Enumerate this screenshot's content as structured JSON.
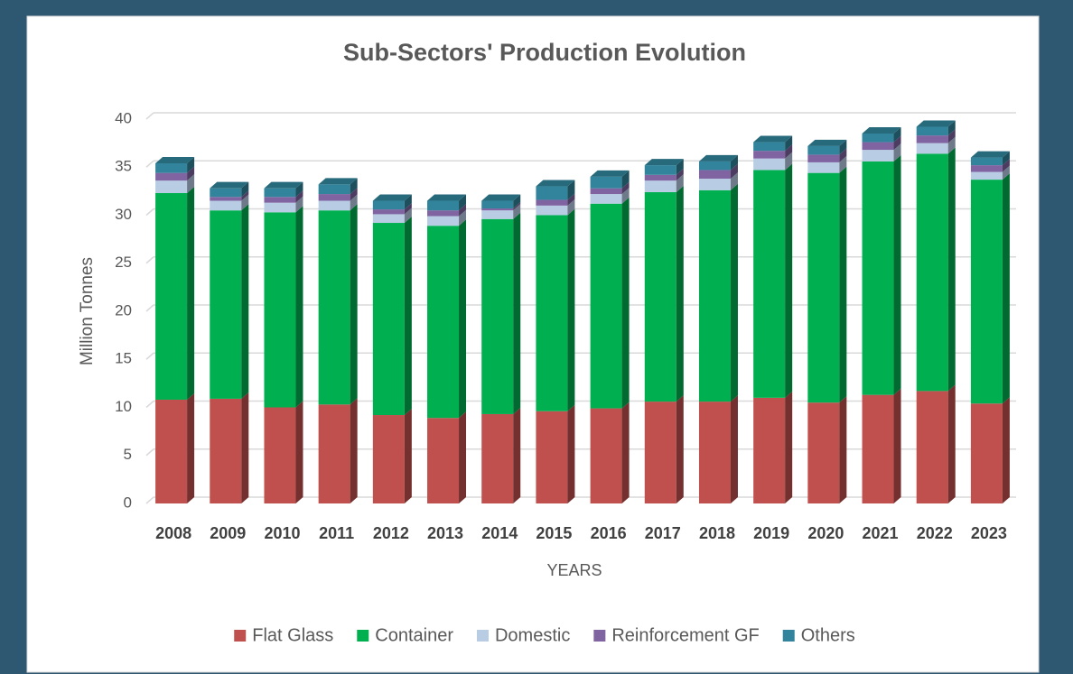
{
  "chart_data": {
    "type": "bar",
    "stacked": true,
    "title": "Sub-Sectors' Production Evolution",
    "x_label": "YEARS",
    "y_label": "Million Tonnes",
    "categories": [
      "2008",
      "2009",
      "2010",
      "2011",
      "2012",
      "2013",
      "2014",
      "2015",
      "2016",
      "2017",
      "2018",
      "2019",
      "2020",
      "2021",
      "2022",
      "2023"
    ],
    "series": [
      {
        "name": "Flat Glass",
        "color": "#c0504d",
        "values": [
          10.8,
          10.9,
          10.0,
          10.3,
          9.2,
          8.9,
          9.3,
          9.6,
          9.9,
          10.6,
          10.6,
          11.0,
          10.5,
          11.3,
          11.7,
          10.4
        ]
      },
      {
        "name": "Container",
        "color": "#00b050",
        "values": [
          21.5,
          19.6,
          20.3,
          20.2,
          20.0,
          20.0,
          20.3,
          20.4,
          21.3,
          21.8,
          22.0,
          23.7,
          23.9,
          24.3,
          24.7,
          23.3
        ]
      },
      {
        "name": "Domestic",
        "color": "#b8cce4",
        "values": [
          1.3,
          1.0,
          1.0,
          1.0,
          0.9,
          1.0,
          0.9,
          1.0,
          1.0,
          1.2,
          1.2,
          1.2,
          1.1,
          1.2,
          1.1,
          0.8
        ]
      },
      {
        "name": "Reinforcement GF",
        "color": "#8064a2",
        "values": [
          0.8,
          0.4,
          0.6,
          0.7,
          0.5,
          0.6,
          0.2,
          0.6,
          0.6,
          0.6,
          0.9,
          0.8,
          0.8,
          0.8,
          0.8,
          0.7
        ]
      },
      {
        "name": "Others",
        "color": "#31849b",
        "values": [
          1.0,
          0.9,
          0.9,
          1.0,
          0.9,
          1.0,
          0.8,
          1.4,
          1.2,
          1.0,
          0.9,
          0.9,
          0.9,
          0.9,
          0.9,
          0.8
        ]
      }
    ],
    "ylim": [
      0,
      40
    ],
    "yticks": [
      0,
      5,
      10,
      15,
      20,
      25,
      30,
      35,
      40
    ],
    "grid": true,
    "legend": "bottom"
  }
}
